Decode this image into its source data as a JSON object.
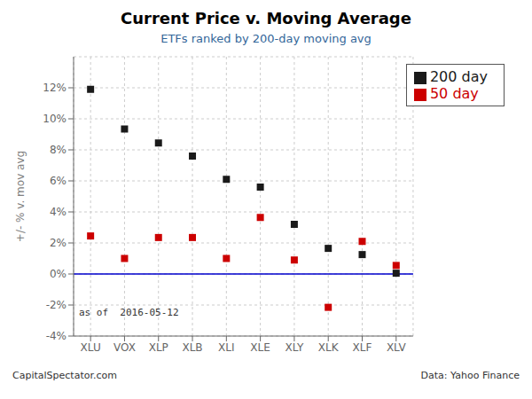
{
  "chart_data": {
    "type": "scatter",
    "title": "Current Price v. Moving Average",
    "subtitle": "ETFs ranked by 200-day moving avg",
    "ylabel": "+/- % v. mov avg",
    "annotations": [
      "as of  2016-05-12",
      "CapitalSpectator.com",
      "Data: Yahoo Finance"
    ],
    "categories": [
      "XLU",
      "VOX",
      "XLP",
      "XLB",
      "XLI",
      "XLE",
      "XLY",
      "XLK",
      "XLF",
      "XLV"
    ],
    "series": [
      {
        "name": "200 day",
        "color": "#1a1a1a",
        "marker": "square",
        "values": [
          11.9,
          9.35,
          8.45,
          7.6,
          6.1,
          5.6,
          3.2,
          1.65,
          1.25,
          0.05
        ]
      },
      {
        "name": "50 day",
        "color": "#cc0000",
        "marker": "square",
        "values": [
          2.45,
          1.0,
          2.35,
          2.35,
          1.0,
          3.65,
          0.9,
          -2.15,
          2.1,
          0.55
        ]
      }
    ],
    "reference_line": {
      "y": 0,
      "color": "#0000cc"
    },
    "ylim": [
      -4,
      14
    ],
    "yticks": [
      {
        "value": -4,
        "label": "-4%"
      },
      {
        "value": -2,
        "label": "-2%"
      },
      {
        "value": 0,
        "label": "0%"
      },
      {
        "value": 2,
        "label": "2%"
      },
      {
        "value": 4,
        "label": "4%"
      },
      {
        "value": 6,
        "label": "6%"
      },
      {
        "value": 8,
        "label": "8%"
      },
      {
        "value": 10,
        "label": "10%"
      },
      {
        "value": 12,
        "label": "12%"
      }
    ],
    "grid": true,
    "legend": "upper right"
  }
}
